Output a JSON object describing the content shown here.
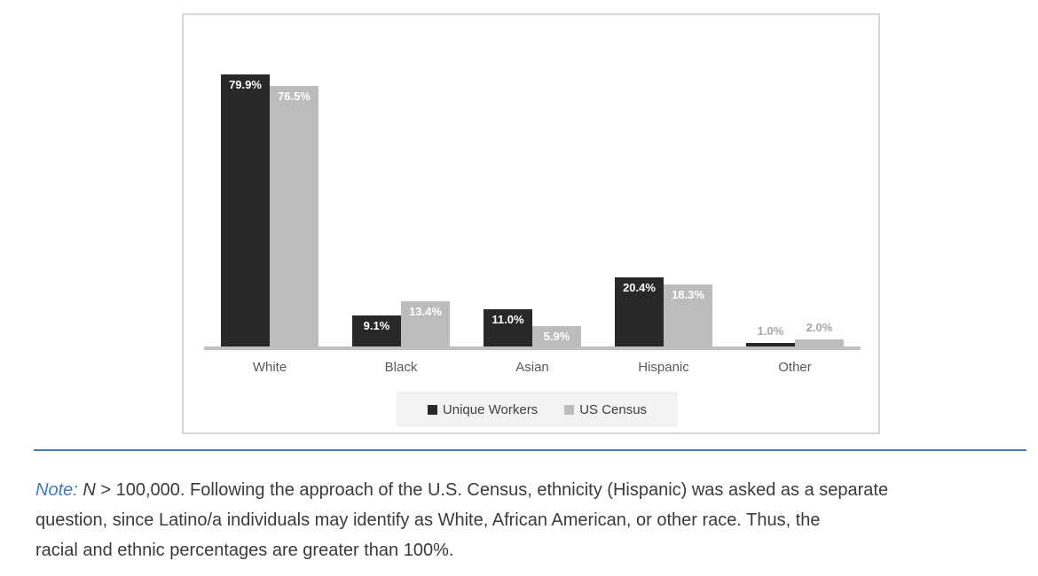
{
  "chart_data": {
    "type": "bar",
    "title": "",
    "xlabel": "",
    "ylabel": "",
    "categories": [
      "White",
      "Black",
      "Asian",
      "Hispanic",
      "Other"
    ],
    "series": [
      {
        "name": "Unique Workers",
        "color": "#282828",
        "values": [
          79.9,
          9.1,
          11.0,
          20.4,
          1.0
        ],
        "labels": [
          "79.9%",
          "9.1%",
          "11.0%",
          "20.4%",
          "1.0%"
        ]
      },
      {
        "name": "US Census",
        "color": "#bcbcbc",
        "values": [
          76.5,
          13.4,
          5.9,
          18.3,
          2.0
        ],
        "labels": [
          "76.5%",
          "13.4%",
          "5.9%",
          "18.3%",
          "2.0%"
        ]
      }
    ],
    "ylim": [
      0,
      97
    ],
    "grid": false,
    "legend_position": "bottom",
    "value_labels": "inside-end, outside when bar too short"
  },
  "colors": {
    "bar_dark": "#282828",
    "bar_gray": "#bcbcbc",
    "axis_line": "#bfbfbf",
    "outside_label_gray": "#a6a6a6",
    "divider_blue": "#4a7cb5",
    "note_blue": "#3d7ac1"
  },
  "note": {
    "prefix": "Note:",
    "n_var": "N",
    "line1_rest": " > 100,000. Following the approach of the U.S. Census, ethnicity (Hispanic) was asked as a separate",
    "line2": "question, since Latino/a individuals may identify as White, African American, or other race. Thus, the",
    "line3": "racial and ethnic percentages are greater than 100%."
  }
}
